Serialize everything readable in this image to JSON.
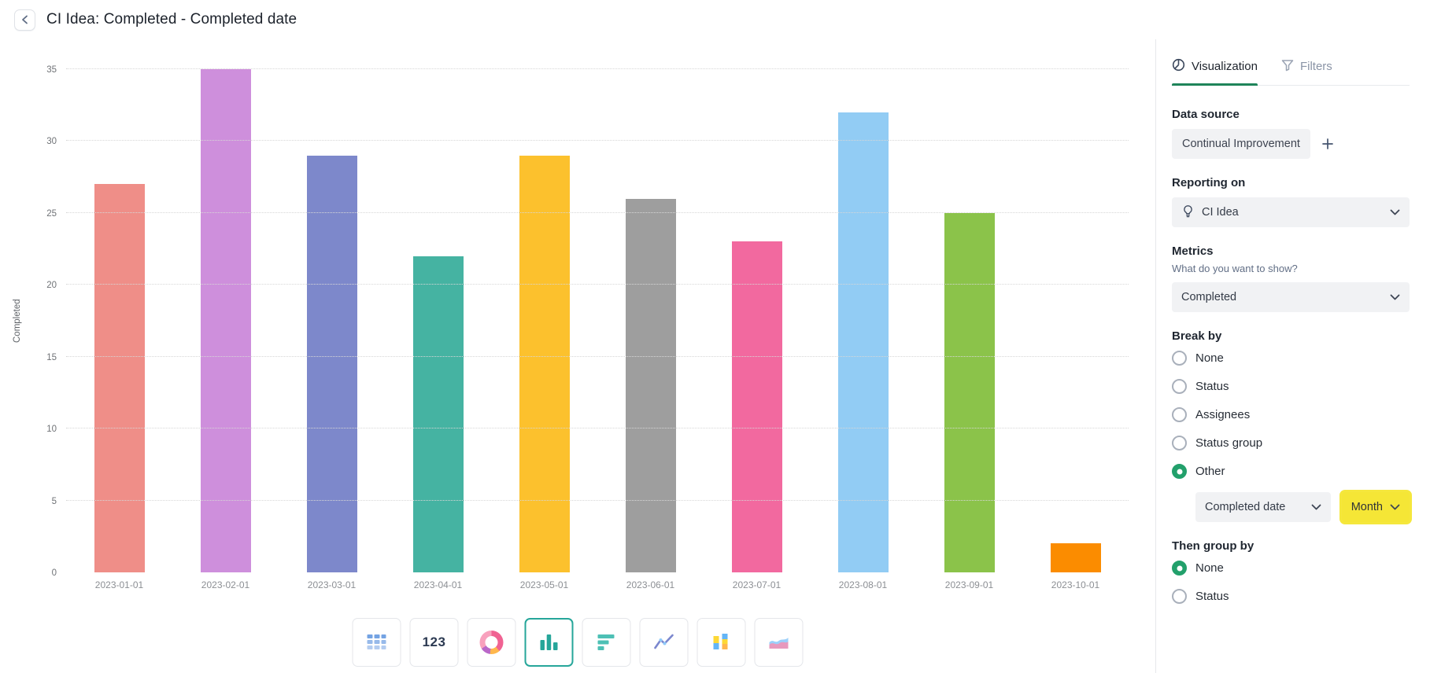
{
  "header": {
    "title": "CI Idea: Completed - Completed date"
  },
  "chart_data": {
    "type": "bar",
    "title": "CI Idea: Completed - Completed date",
    "categories": [
      "2023-01-01",
      "2023-02-01",
      "2023-03-01",
      "2023-04-01",
      "2023-05-01",
      "2023-06-01",
      "2023-07-01",
      "2023-08-01",
      "2023-09-01",
      "2023-10-01"
    ],
    "values": [
      27,
      35,
      29,
      22,
      29,
      26,
      23,
      32,
      25,
      2
    ],
    "colors": [
      "#ef8e88",
      "#ce8fdc",
      "#7d88cb",
      "#45b3a2",
      "#fcc12d",
      "#9e9e9e",
      "#f2699f",
      "#92ccf4",
      "#8bc34a",
      "#fb8c00"
    ],
    "xlabel": "",
    "ylabel": "Completed",
    "ylim": [
      0,
      35
    ],
    "yticks": [
      0,
      5,
      10,
      15,
      20,
      25,
      30,
      35
    ],
    "grid": "horizontal-dotted",
    "legend": "none"
  },
  "toolbar": {
    "items": [
      {
        "name": "table",
        "selected": false
      },
      {
        "name": "number",
        "label": "123",
        "selected": false
      },
      {
        "name": "donut",
        "selected": false
      },
      {
        "name": "column",
        "selected": true
      },
      {
        "name": "bar",
        "selected": false
      },
      {
        "name": "line",
        "selected": false
      },
      {
        "name": "stacked-column",
        "selected": false
      },
      {
        "name": "area",
        "selected": false
      }
    ]
  },
  "sidebar": {
    "tabs": [
      {
        "label": "Visualization",
        "active": true
      },
      {
        "label": "Filters",
        "active": false
      }
    ],
    "data_source": {
      "label": "Data source",
      "chip": "Continual Improvement"
    },
    "reporting_on": {
      "label": "Reporting on",
      "value": "CI Idea"
    },
    "metrics": {
      "label": "Metrics",
      "hint": "What do you want to show?",
      "value": "Completed"
    },
    "break_by": {
      "label": "Break by",
      "options": [
        "None",
        "Status",
        "Assignees",
        "Status group",
        "Other"
      ],
      "selected": "Other",
      "other_field": "Completed date",
      "other_granularity": "Month"
    },
    "then_group_by": {
      "label": "Then group by",
      "options": [
        "None",
        "Status"
      ],
      "selected": "None"
    }
  },
  "colors": {
    "accent_green": "#22a06b",
    "tab_underline": "#1f845a",
    "selected_tool_border": "#26a69a",
    "highlight_yellow": "#f5e636"
  }
}
